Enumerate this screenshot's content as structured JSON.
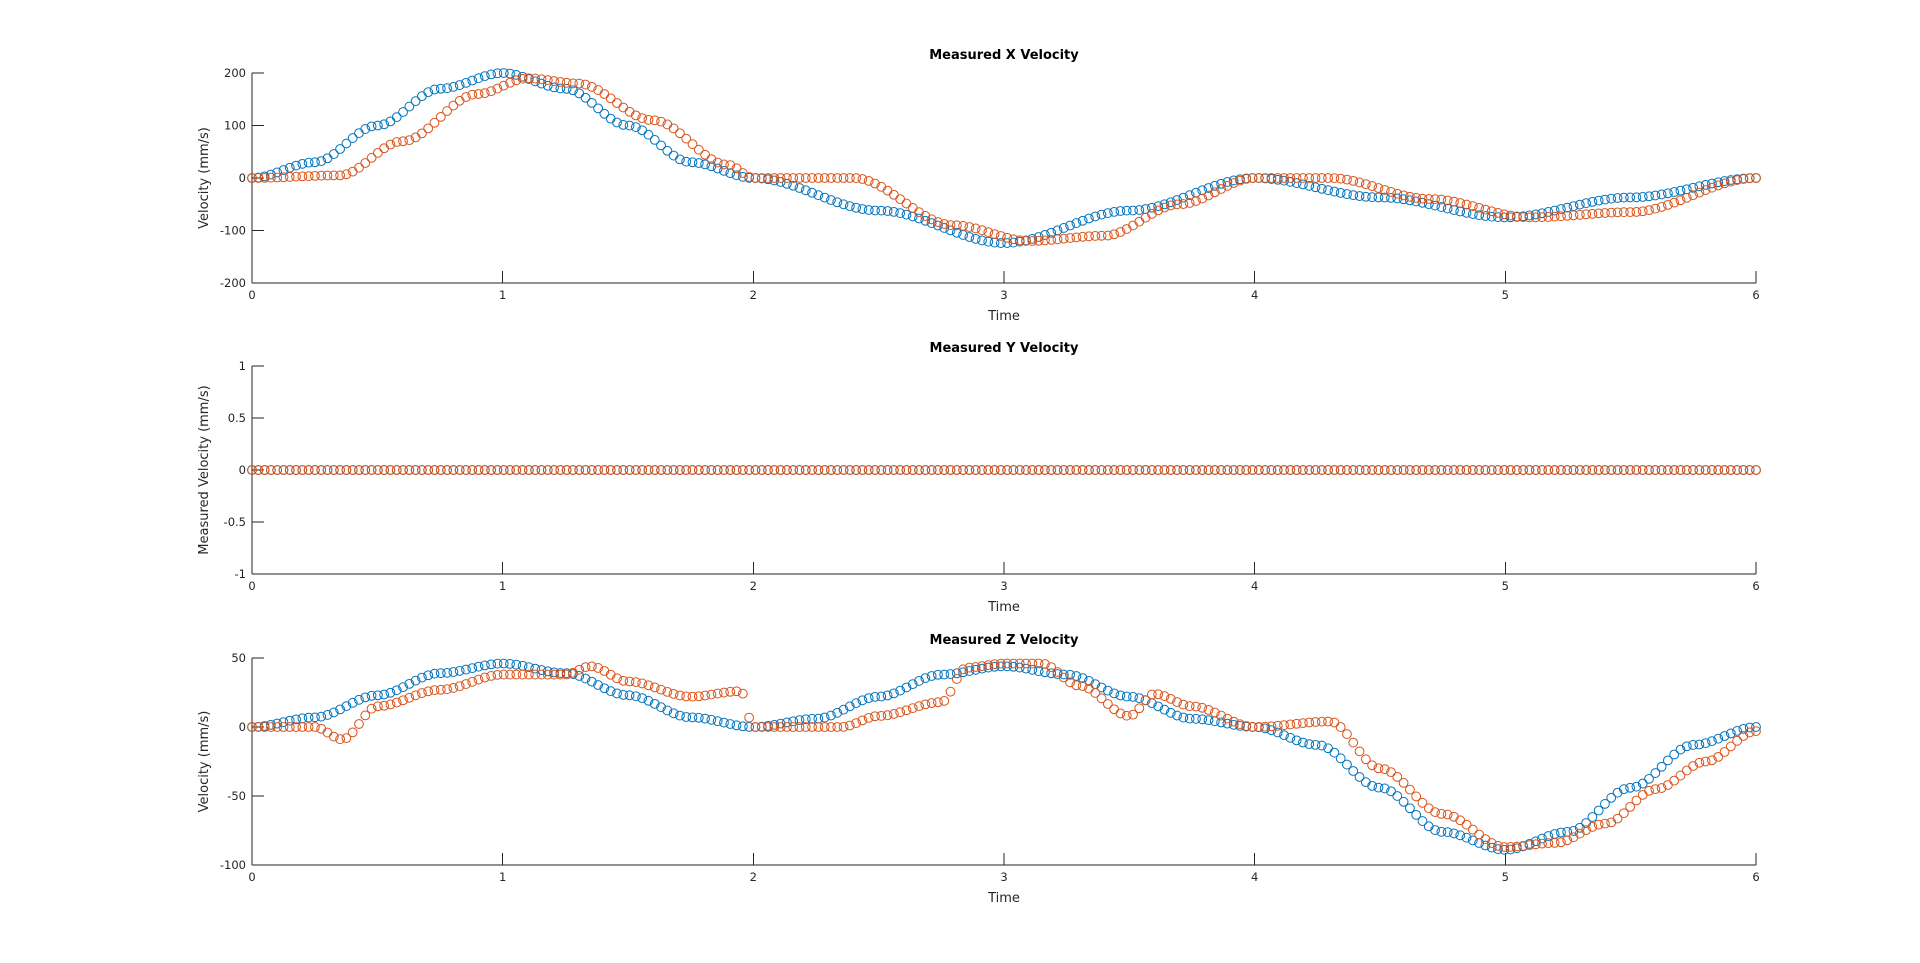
{
  "colors": {
    "blue": "#0072BD",
    "orange": "#D95319",
    "axis": "#262626"
  },
  "chart_data": [
    {
      "type": "scatter",
      "title": "Measured X Velocity",
      "xlabel": "Time",
      "ylabel": "Velocity (mm/s)",
      "xlim": [
        0,
        6
      ],
      "ylim": [
        -200,
        200
      ],
      "xticks": [
        0,
        1,
        2,
        3,
        4,
        5,
        6
      ],
      "yticks": [
        200,
        100,
        0,
        -100,
        -200
      ],
      "grid": false,
      "series": [
        {
          "color": "blue",
          "x": [
            0,
            0.25,
            0.5,
            0.75,
            1.0,
            1.25,
            1.5,
            1.75,
            2.0,
            2.5,
            3.0,
            3.5,
            4.0,
            4.5,
            5.0,
            5.5,
            6.0
          ],
          "y": [
            0,
            30,
            100,
            170,
            200,
            170,
            100,
            30,
            0,
            -62,
            -124,
            -62,
            0,
            -37,
            -75,
            -37,
            0
          ]
        },
        {
          "color": "orange",
          "x": [
            0,
            0.35,
            0.6,
            0.9,
            1.1,
            1.3,
            1.6,
            1.9,
            2.0,
            2.4,
            2.8,
            3.1,
            3.4,
            3.7,
            4.0,
            4.3,
            4.7,
            5.1,
            5.5,
            6.0
          ],
          "y": [
            0,
            5,
            70,
            160,
            190,
            180,
            110,
            25,
            0,
            0,
            -90,
            -120,
            -110,
            -50,
            0,
            0,
            -40,
            -75,
            -65,
            0
          ]
        }
      ]
    },
    {
      "type": "scatter",
      "title": "Measured Y Velocity",
      "xlabel": "Time",
      "ylabel": "Measured Velocity (mm/s)",
      "xlim": [
        0,
        6
      ],
      "ylim": [
        -1,
        1
      ],
      "xticks": [
        0,
        1,
        2,
        3,
        4,
        5,
        6
      ],
      "yticks": [
        1,
        0.5,
        0,
        -0.5,
        -1
      ],
      "grid": false,
      "series": [
        {
          "color": "blue",
          "x": [
            0,
            6
          ],
          "y": [
            0,
            0
          ]
        },
        {
          "color": "orange",
          "x": [
            0,
            6
          ],
          "y": [
            0,
            0
          ]
        }
      ]
    },
    {
      "type": "scatter",
      "title": "Measured Z Velocity",
      "xlabel": "Time",
      "ylabel": "Velocity (mm/s)",
      "xlim": [
        0,
        6
      ],
      "ylim": [
        -100,
        50
      ],
      "xticks": [
        0,
        1,
        2,
        3,
        4,
        5,
        6
      ],
      "yticks": [
        50,
        0,
        -50,
        -100
      ],
      "grid": false,
      "series": [
        {
          "color": "blue",
          "x": [
            0,
            0.25,
            0.5,
            0.75,
            1.0,
            1.25,
            1.5,
            1.75,
            2.0,
            2.25,
            2.5,
            2.75,
            3.0,
            3.25,
            3.5,
            3.75,
            4.0,
            4.25,
            4.5,
            4.75,
            5.0,
            5.25,
            5.5,
            5.75,
            6.0
          ],
          "y": [
            0,
            7,
            23,
            39,
            46,
            39,
            23,
            7,
            0,
            6,
            22,
            38,
            44,
            38,
            22,
            6,
            0,
            -13,
            -44,
            -76,
            -89,
            -76,
            -44,
            -13,
            0
          ]
        },
        {
          "color": "orange",
          "x": [
            0,
            0.25,
            0.36,
            0.5,
            0.75,
            1.0,
            1.25,
            1.35,
            1.5,
            1.75,
            1.95,
            2.0,
            2.35,
            2.5,
            2.75,
            2.85,
            3.0,
            3.15,
            3.3,
            3.5,
            3.6,
            3.75,
            4.0,
            4.3,
            4.5,
            4.75,
            5.0,
            5.2,
            5.4,
            5.6,
            5.8,
            6.0
          ],
          "y": [
            0,
            0,
            -9,
            15,
            27,
            38,
            38,
            44,
            33,
            22,
            26,
            0,
            0,
            8,
            18,
            43,
            46,
            46,
            30,
            8,
            24,
            15,
            0,
            4,
            -30,
            -63,
            -87,
            -84,
            -70,
            -45,
            -25,
            -3
          ]
        }
      ]
    }
  ]
}
